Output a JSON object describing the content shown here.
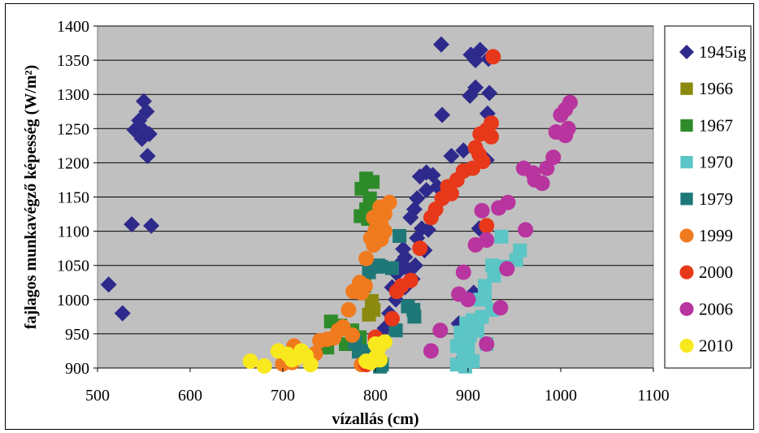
{
  "chart_data": {
    "type": "scatter",
    "title": "",
    "xlabel": "vízallás (cm)",
    "ylabel": "fajlagos munkavégző képesség (W/m²)",
    "xlim": [
      500,
      1100
    ],
    "ylim": [
      900,
      1400
    ],
    "xticks": [
      "500",
      "600",
      "700",
      "800",
      "900",
      "1000",
      "1100"
    ],
    "yticks": [
      "900",
      "950",
      "1000",
      "1050",
      "1100",
      "1150",
      "1200",
      "1250",
      "1300",
      "1350",
      "1400"
    ],
    "grid": "horizontal",
    "legend_position": "right",
    "series": [
      {
        "name": "1945ig",
        "color": "#2e2a8c",
        "marker": "diamond",
        "points": [
          [
            550,
            1290
          ],
          [
            553,
            1275
          ],
          [
            545,
            1262
          ],
          [
            548,
            1250
          ],
          [
            540,
            1248
          ],
          [
            556,
            1242
          ],
          [
            548,
            1235
          ],
          [
            554,
            1210
          ],
          [
            537,
            1110
          ],
          [
            558,
            1108
          ],
          [
            512,
            1022
          ],
          [
            527,
            980
          ],
          [
            871,
            1373
          ],
          [
            913,
            1365
          ],
          [
            908,
            1350
          ],
          [
            903,
            1358
          ],
          [
            922,
            1352
          ],
          [
            908,
            1310
          ],
          [
            902,
            1298
          ],
          [
            923,
            1302
          ],
          [
            921,
            1272
          ],
          [
            872,
            1270
          ],
          [
            895,
            1218
          ],
          [
            882,
            1210
          ],
          [
            920,
            1204
          ],
          [
            855,
            1186
          ],
          [
            848,
            1180
          ],
          [
            862,
            1182
          ],
          [
            867,
            1165
          ],
          [
            855,
            1160
          ],
          [
            845,
            1148
          ],
          [
            842,
            1132
          ],
          [
            838,
            1120
          ],
          [
            850,
            1104
          ],
          [
            857,
            1102
          ],
          [
            845,
            1090
          ],
          [
            830,
            1074
          ],
          [
            853,
            1072
          ],
          [
            832,
            1062
          ],
          [
            826,
            1052
          ],
          [
            843,
            1050
          ],
          [
            835,
            1044
          ],
          [
            823,
            1038
          ],
          [
            840,
            1030
          ],
          [
            818,
            1018
          ],
          [
            832,
            1018
          ],
          [
            815,
            980
          ],
          [
            810,
            958
          ],
          [
            822,
            1000
          ],
          [
            912,
            1104
          ],
          [
            906,
            1010
          ],
          [
            890,
            965
          ],
          [
            895,
            915
          ]
        ]
      },
      {
        "name": "1966",
        "color": "#8b8a0e",
        "marker": "square",
        "points": [
          [
            796,
            998
          ],
          [
            798,
            985
          ],
          [
            793,
            978
          ]
        ]
      },
      {
        "name": "1967",
        "color": "#2e8b2a",
        "marker": "square",
        "points": [
          [
            790,
            1177
          ],
          [
            797,
            1172
          ],
          [
            785,
            1162
          ],
          [
            794,
            1148
          ],
          [
            790,
            1132
          ],
          [
            784,
            1122
          ],
          [
            792,
            1118
          ],
          [
            788,
            1020
          ],
          [
            782,
            1012
          ],
          [
            752,
            968
          ],
          [
            762,
            962
          ],
          [
            775,
            955
          ],
          [
            783,
            945
          ],
          [
            768,
            935
          ],
          [
            748,
            930
          ]
        ]
      },
      {
        "name": "1970",
        "color": "#5cc5c5",
        "marker": "square",
        "points": [
          [
            936,
            1092
          ],
          [
            956,
            1072
          ],
          [
            952,
            1058
          ],
          [
            940,
            1048
          ],
          [
            926,
            1050
          ],
          [
            928,
            1035
          ],
          [
            918,
            1020
          ],
          [
            918,
            1005
          ],
          [
            913,
            1000
          ],
          [
            926,
            985
          ],
          [
            915,
            975
          ],
          [
            905,
            970
          ],
          [
            898,
            965
          ],
          [
            910,
            955
          ],
          [
            902,
            948
          ],
          [
            892,
            952
          ],
          [
            920,
            935
          ],
          [
            888,
            932
          ],
          [
            900,
            928
          ],
          [
            895,
            918
          ],
          [
            905,
            910
          ],
          [
            888,
            905
          ],
          [
            897,
            902
          ]
        ]
      },
      {
        "name": "1979",
        "color": "#1e7878",
        "marker": "square",
        "points": [
          [
            826,
            1093
          ],
          [
            803,
            1050
          ],
          [
            806,
            1048
          ],
          [
            818,
            1046
          ],
          [
            793,
            1040
          ],
          [
            835,
            990
          ],
          [
            841,
            985
          ],
          [
            842,
            975
          ],
          [
            822,
            955
          ],
          [
            778,
            937
          ],
          [
            790,
            925
          ],
          [
            782,
            924
          ],
          [
            807,
            905
          ],
          [
            805,
            902
          ]
        ]
      },
      {
        "name": "1999",
        "color": "#f07a1e",
        "marker": "circle",
        "points": [
          [
            815,
            1142
          ],
          [
            805,
            1135
          ],
          [
            810,
            1125
          ],
          [
            798,
            1120
          ],
          [
            806,
            1110
          ],
          [
            800,
            1102
          ],
          [
            810,
            1100
          ],
          [
            795,
            1090
          ],
          [
            806,
            1088
          ],
          [
            798,
            1080
          ],
          [
            790,
            1060
          ],
          [
            783,
            1025
          ],
          [
            789,
            1020
          ],
          [
            776,
            1012
          ],
          [
            785,
            1010
          ],
          [
            771,
            985
          ],
          [
            765,
            960
          ],
          [
            760,
            955
          ],
          [
            755,
            944
          ],
          [
            748,
            942
          ],
          [
            740,
            940
          ],
          [
            775,
            948
          ],
          [
            712,
            932
          ],
          [
            705,
            912
          ],
          [
            710,
            908
          ],
          [
            700,
            906
          ],
          [
            735,
            921
          ],
          [
            785,
            905
          ]
        ]
      },
      {
        "name": "2000",
        "color": "#e8381a",
        "marker": "circle",
        "points": [
          [
            927,
            1355
          ],
          [
            925,
            1258
          ],
          [
            920,
            1248
          ],
          [
            913,
            1242
          ],
          [
            925,
            1238
          ],
          [
            908,
            1222
          ],
          [
            912,
            1212
          ],
          [
            916,
            1202
          ],
          [
            905,
            1192
          ],
          [
            895,
            1188
          ],
          [
            888,
            1175
          ],
          [
            878,
            1165
          ],
          [
            882,
            1155
          ],
          [
            872,
            1148
          ],
          [
            865,
            1132
          ],
          [
            860,
            1120
          ],
          [
            920,
            1108
          ],
          [
            848,
            1075
          ],
          [
            838,
            1028
          ],
          [
            828,
            1020
          ],
          [
            823,
            1012
          ],
          [
            800,
            945
          ],
          [
            818,
            972
          ],
          [
            800,
            940
          ],
          [
            790,
            905
          ]
        ]
      },
      {
        "name": "2006",
        "color": "#b8349e",
        "marker": "circle",
        "points": [
          [
            1010,
            1288
          ],
          [
            1005,
            1278
          ],
          [
            1000,
            1270
          ],
          [
            1008,
            1250
          ],
          [
            995,
            1245
          ],
          [
            1005,
            1240
          ],
          [
            992,
            1208
          ],
          [
            985,
            1192
          ],
          [
            960,
            1192
          ],
          [
            970,
            1185
          ],
          [
            972,
            1175
          ],
          [
            980,
            1170
          ],
          [
            943,
            1142
          ],
          [
            933,
            1134
          ],
          [
            915,
            1130
          ],
          [
            962,
            1102
          ],
          [
            920,
            1087
          ],
          [
            908,
            1080
          ],
          [
            942,
            1045
          ],
          [
            895,
            1040
          ],
          [
            890,
            1008
          ],
          [
            900,
            1000
          ],
          [
            935,
            988
          ],
          [
            870,
            955
          ],
          [
            920,
            935
          ],
          [
            860,
            925
          ]
        ]
      },
      {
        "name": "2010",
        "color": "#f8e81e",
        "marker": "circle",
        "points": [
          [
            665,
            910
          ],
          [
            680,
            903
          ],
          [
            695,
            925
          ],
          [
            705,
            920
          ],
          [
            715,
            915
          ],
          [
            720,
            925
          ],
          [
            730,
            905
          ],
          [
            725,
            918
          ],
          [
            710,
            912
          ],
          [
            800,
            935
          ],
          [
            803,
            928
          ],
          [
            810,
            938
          ],
          [
            800,
            915
          ],
          [
            805,
            912
          ],
          [
            790,
            910
          ],
          [
            795,
            908
          ]
        ]
      }
    ]
  }
}
